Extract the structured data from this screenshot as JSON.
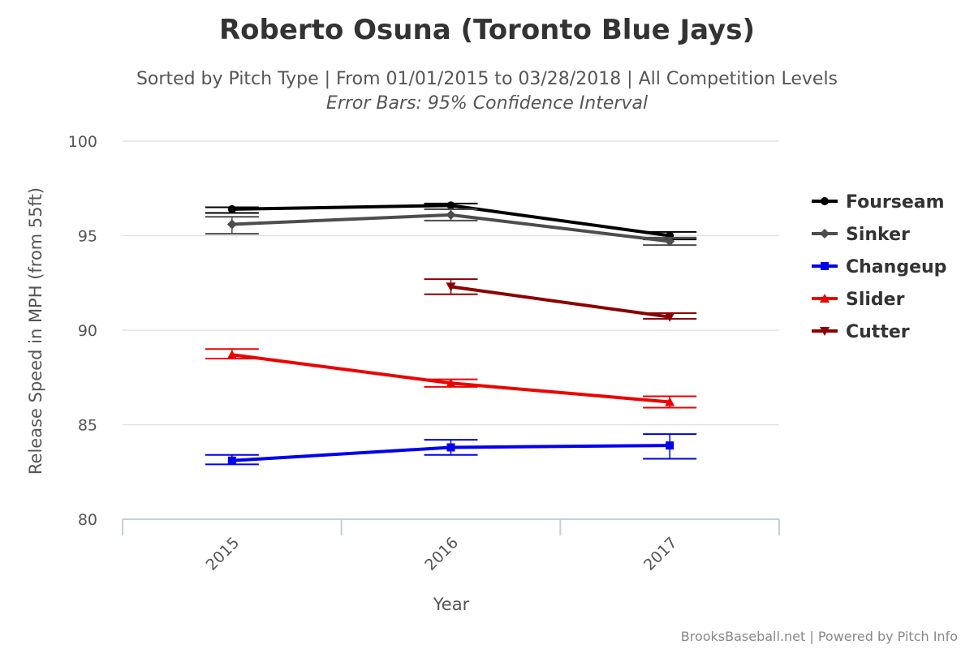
{
  "chart_data": {
    "type": "line",
    "title": "Roberto Osuna (Toronto Blue Jays)",
    "subtitle": "Sorted by Pitch Type | From 01/01/2015 to 03/28/2018 | All Competition Levels",
    "subtitle2": "Error Bars: 95% Confidence Interval",
    "xlabel": "Year",
    "ylabel": "Release Speed in MPH (from 55ft)",
    "categories": [
      "2015",
      "2016",
      "2017"
    ],
    "ylim": [
      80,
      100
    ],
    "yticks": [
      80,
      85,
      90,
      95,
      100
    ],
    "grid": true,
    "legend_position": "right",
    "series": [
      {
        "name": "Fourseam",
        "color": "#000000",
        "marker": "circle",
        "values": [
          96.4,
          96.6,
          95.0
        ],
        "error_low": [
          96.2,
          96.4,
          94.8
        ],
        "error_high": [
          96.5,
          96.7,
          95.2
        ]
      },
      {
        "name": "Sinker",
        "color": "#4d4d4d",
        "marker": "diamond",
        "values": [
          95.6,
          96.1,
          94.7
        ],
        "error_low": [
          95.1,
          95.8,
          94.5
        ],
        "error_high": [
          96.0,
          96.4,
          94.9
        ]
      },
      {
        "name": "Changeup",
        "color": "#0000ee",
        "marker": "square",
        "values": [
          83.1,
          83.8,
          83.9
        ],
        "error_low": [
          82.9,
          83.4,
          83.2
        ],
        "error_high": [
          83.4,
          84.2,
          84.5
        ]
      },
      {
        "name": "Slider",
        "color": "#ee0000",
        "marker": "triangle",
        "values": [
          88.7,
          87.2,
          86.2
        ],
        "error_low": [
          88.5,
          87.0,
          85.9
        ],
        "error_high": [
          89.0,
          87.4,
          86.5
        ]
      },
      {
        "name": "Cutter",
        "color": "#8b0000",
        "marker": "triangle-down",
        "values": [
          null,
          92.3,
          90.7
        ],
        "error_low": [
          null,
          91.9,
          90.6
        ],
        "error_high": [
          null,
          92.7,
          90.9
        ]
      }
    ]
  },
  "credit": "BrooksBaseball.net | Powered by Pitch Info"
}
